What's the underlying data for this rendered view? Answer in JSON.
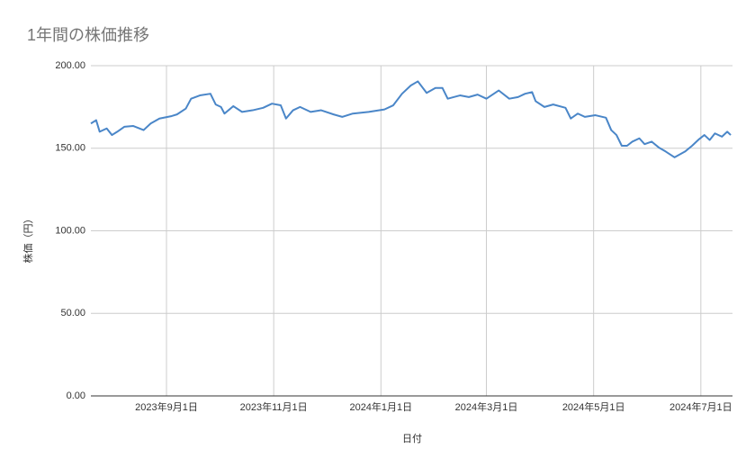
{
  "chart_data": {
    "type": "line",
    "title": "1年間の株価推移",
    "x_label": "日付",
    "y_label": "株価（円）",
    "x": [
      "2023-07-20",
      "2023-07-23",
      "2023-07-25",
      "2023-07-29",
      "2023-08-01",
      "2023-08-04",
      "2023-08-08",
      "2023-08-13",
      "2023-08-19",
      "2023-08-23",
      "2023-08-28",
      "2023-09-04",
      "2023-09-07",
      "2023-09-12",
      "2023-09-15",
      "2023-09-20",
      "2023-09-26",
      "2023-09-29",
      "2023-10-02",
      "2023-10-04",
      "2023-10-09",
      "2023-10-14",
      "2023-10-20",
      "2023-10-26",
      "2023-10-31",
      "2023-11-05",
      "2023-11-08",
      "2023-11-12",
      "2023-11-16",
      "2023-11-22",
      "2023-11-28",
      "2023-12-05",
      "2023-12-10",
      "2023-12-16",
      "2023-12-25",
      "2024-01-03",
      "2024-01-08",
      "2024-01-13",
      "2024-01-18",
      "2024-01-22",
      "2024-01-27",
      "2024-02-01",
      "2024-02-05",
      "2024-02-08",
      "2024-02-15",
      "2024-02-20",
      "2024-02-25",
      "2024-03-01",
      "2024-03-08",
      "2024-03-14",
      "2024-03-19",
      "2024-03-23",
      "2024-03-27",
      "2024-03-29",
      "2024-04-03",
      "2024-04-08",
      "2024-04-15",
      "2024-04-18",
      "2024-04-22",
      "2024-04-26",
      "2024-05-02",
      "2024-05-08",
      "2024-05-11",
      "2024-05-14",
      "2024-05-17",
      "2024-05-20",
      "2024-05-23",
      "2024-05-27",
      "2024-05-30",
      "2024-06-03",
      "2024-06-07",
      "2024-06-11",
      "2024-06-16",
      "2024-06-22",
      "2024-06-26",
      "2024-06-30",
      "2024-07-03",
      "2024-07-06",
      "2024-07-09",
      "2024-07-13",
      "2024-07-16",
      "2024-07-18"
    ],
    "series": [
      {
        "name": "株価",
        "color": "#4a86c8",
        "values": [
          165,
          167,
          160,
          162,
          158,
          160,
          163,
          163.5,
          161,
          165,
          168,
          169.5,
          170.5,
          174,
          180,
          182,
          183,
          176.5,
          175,
          171,
          175.5,
          172,
          173,
          174.5,
          177,
          176,
          168,
          173,
          175,
          172,
          173,
          170.5,
          169,
          171,
          172,
          173.5,
          176,
          183,
          188,
          190.5,
          183.5,
          186.5,
          186.5,
          180,
          182,
          181,
          182.5,
          180,
          185,
          180,
          181,
          183,
          184,
          178.5,
          175,
          176.5,
          174.5,
          168,
          171,
          169,
          170,
          168.5,
          161,
          158,
          151.5,
          151.5,
          154,
          156,
          152.5,
          154,
          150.5,
          148,
          144.5,
          148,
          151.5,
          155.5,
          158,
          155,
          159,
          157,
          160,
          158
        ]
      }
    ],
    "xlim": [
      "2023-07-20",
      "2024-07-19"
    ],
    "xticks": [
      {
        "value": "2023-09-01",
        "label": "2023年9月1日"
      },
      {
        "value": "2023-11-01",
        "label": "2023年11月1日"
      },
      {
        "value": "2024-01-01",
        "label": "2024年1月1日"
      },
      {
        "value": "2024-03-01",
        "label": "2024年3月1日"
      },
      {
        "value": "2024-05-01",
        "label": "2024年5月1日"
      },
      {
        "value": "2024-07-01",
        "label": "2024年7月1日"
      }
    ],
    "ylim": [
      0,
      200
    ],
    "yticks": [
      {
        "value": 0,
        "label": "0.00"
      },
      {
        "value": 50,
        "label": "50.00"
      },
      {
        "value": 100,
        "label": "100.00"
      },
      {
        "value": 150,
        "label": "150.00"
      },
      {
        "value": 200,
        "label": "200.00"
      }
    ],
    "grid": true
  }
}
